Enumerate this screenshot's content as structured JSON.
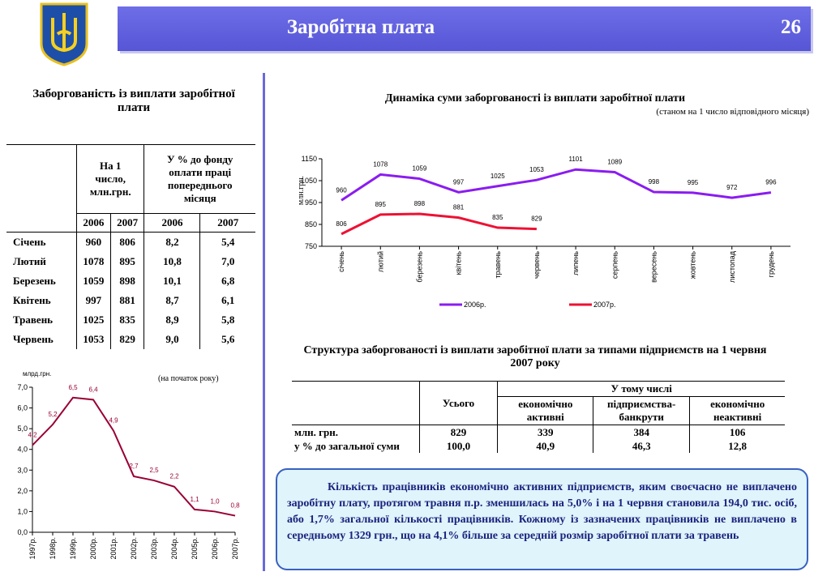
{
  "header": {
    "title": "Заробітна плата",
    "page": "26"
  },
  "debt_table": {
    "title": "Заборгованість із виплати заробітної плати",
    "columns": [
      "На 1 число, млн.грн.",
      "У % до фонду оплати праці попереднього місяця"
    ],
    "years": [
      "2006",
      "2007",
      "2006",
      "2007"
    ],
    "rows": [
      [
        "Січень",
        "960",
        "806",
        "8,2",
        "5,4"
      ],
      [
        "Лютий",
        "1078",
        "895",
        "10,8",
        "7,0"
      ],
      [
        "Березень",
        "1059",
        "898",
        "10,1",
        "6,8"
      ],
      [
        "Квітень",
        "997",
        "881",
        "8,7",
        "6,1"
      ],
      [
        "Травень",
        "1025",
        "835",
        "8,9",
        "5,8"
      ],
      [
        "Червень",
        "1053",
        "829",
        "9,0",
        "5,6"
      ]
    ]
  },
  "chart_data": [
    {
      "type": "line",
      "title": "Динаміка суми заборгованості із виплати заробітної плати",
      "subtitle": "(станом на 1 число відповідного місяця)",
      "y_label": "млн.грн.",
      "categories": [
        "січень",
        "лютий",
        "березень",
        "квітень",
        "травень",
        "червень",
        "липень",
        "серпень",
        "вересень",
        "жовтень",
        "листопад",
        "грудень"
      ],
      "series": [
        {
          "name": "2006р.",
          "color": "#8a1cf0",
          "values": [
            960,
            1078,
            1059,
            997,
            1025,
            1053,
            1101,
            1089,
            998,
            995,
            972,
            996
          ]
        },
        {
          "name": "2007р.",
          "color": "#ee1133",
          "values": [
            806,
            895,
            898,
            881,
            835,
            829,
            null,
            null,
            null,
            null,
            null,
            null
          ]
        }
      ],
      "ylim": [
        750,
        1150
      ],
      "yticks": [
        750,
        850,
        950,
        1050,
        1150
      ],
      "grid": false,
      "legend": "bottom",
      "data_labels": true
    },
    {
      "type": "line",
      "y_label": "млрд.грн.",
      "annotation": "(на початок року)",
      "categories": [
        "1997р.",
        "1998р.",
        "1999р.",
        "2000р.",
        "2001р.",
        "2002р.",
        "2003р.",
        "2004р.",
        "2005р.",
        "2006р.",
        "2007р."
      ],
      "color": "#990033",
      "values": [
        4.2,
        5.2,
        6.5,
        6.4,
        4.9,
        2.7,
        2.5,
        2.2,
        1.1,
        1.0,
        0.8
      ],
      "value_labels": [
        "4,2",
        "5,2",
        "6,5",
        "6,4",
        "4,9",
        "2,7",
        "2,5",
        "2,2",
        "1,1",
        "1,0",
        "0,8"
      ],
      "ylim": [
        0,
        7
      ],
      "yticks": [
        {
          "value": 0,
          "label": "0,0"
        },
        {
          "value": 1,
          "label": "1,0"
        },
        {
          "value": 2,
          "label": "2,0"
        },
        {
          "value": 3,
          "label": "3,0"
        },
        {
          "value": 4,
          "label": "4,0"
        },
        {
          "value": 5,
          "label": "5,0"
        },
        {
          "value": 6,
          "label": "6,0"
        },
        {
          "value": 7,
          "label": "7,0"
        }
      ],
      "grid": false,
      "data_labels": true
    }
  ],
  "structure_table": {
    "title": "Структура заборгованості із виплати заробітної плати за типами підприємств на 1 червня 2007 року",
    "total": "Усього",
    "group": "У тому числі",
    "columns": [
      "економічно активні",
      "підприємства-банкрути",
      "економічно неактивні"
    ],
    "rows": [
      [
        "млн. грн.",
        "829",
        "339",
        "384",
        "106"
      ],
      [
        "у % до загальної суми",
        "100,0",
        "40,9",
        "46,3",
        "12,8"
      ]
    ]
  },
  "note": "Кількість працівників економічно активних підприємств, яким своєчасно не виплачено заробітну плату, протягом травня п.р. зменшилась на 5,0% і на 1 червня становила 194,0 тис. осіб, або 1,7% загальної кількості працівників. Кожному із зазначених працівників не виплачено в середньому 1329 грн., що на 4,1% більше за середній розмір заробітної плати за травень"
}
